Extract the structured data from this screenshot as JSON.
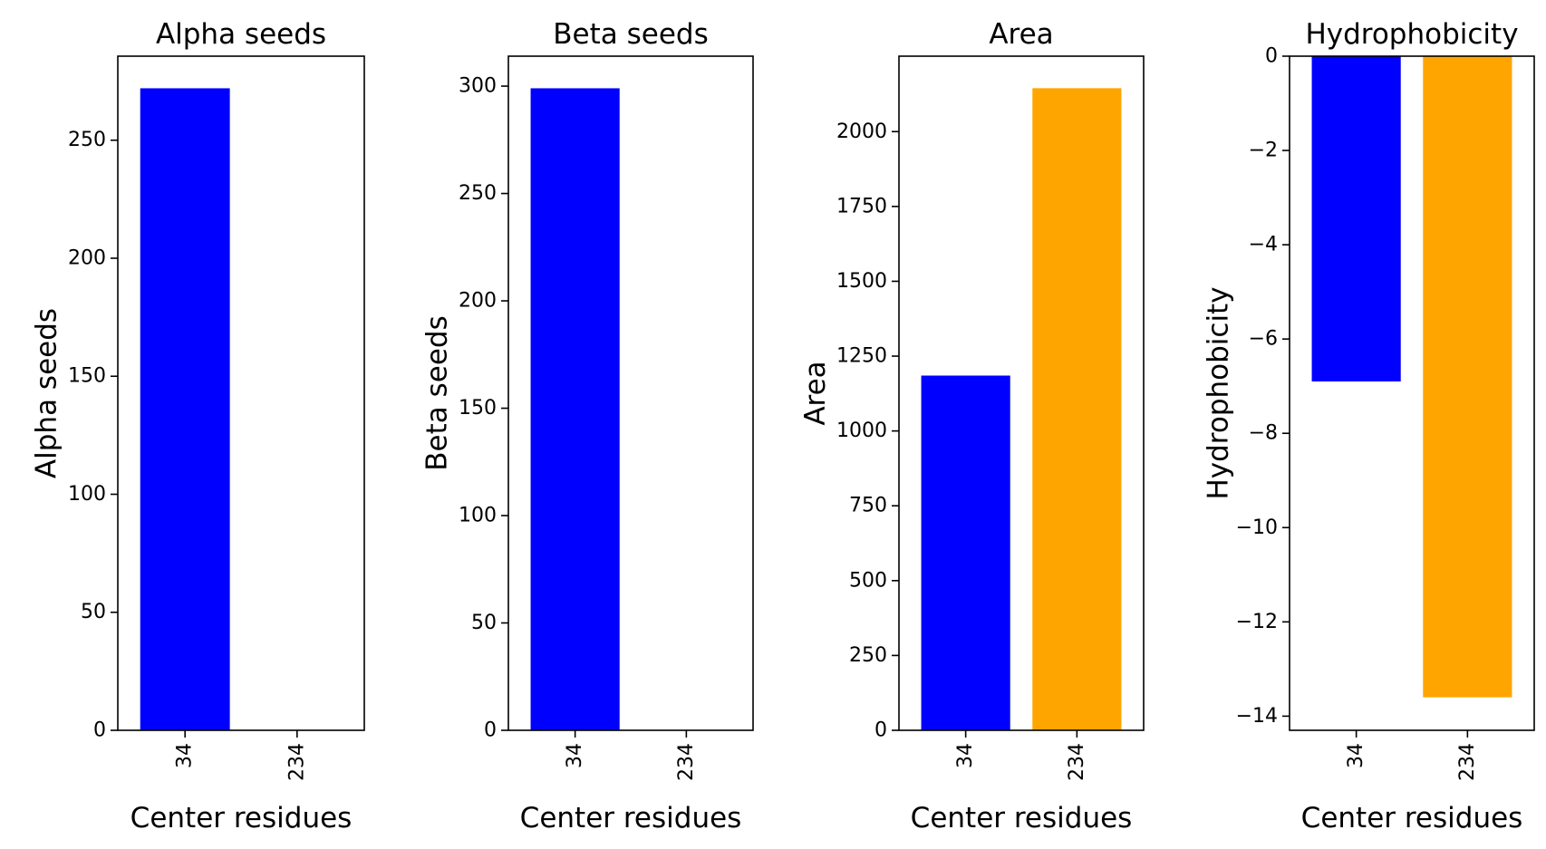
{
  "chart_data": [
    {
      "type": "bar",
      "title": "Alpha seeds",
      "xlabel": "Center residues",
      "ylabel": "Alpha seeds",
      "categories": [
        "34",
        "234"
      ],
      "values": [
        272,
        0
      ],
      "colors": [
        "#0000ff",
        "#ffa500"
      ],
      "ylim": [
        0,
        285.6
      ],
      "yticks": [
        0,
        50,
        100,
        150,
        200,
        250
      ],
      "ytick_labels": [
        "0",
        "50",
        "100",
        "150",
        "200",
        "250"
      ],
      "grid": false
    },
    {
      "type": "bar",
      "title": "Beta seeds",
      "xlabel": "Center residues",
      "ylabel": "Beta seeds",
      "categories": [
        "34",
        "234"
      ],
      "values": [
        299,
        0
      ],
      "colors": [
        "#0000ff",
        "#ffa500"
      ],
      "ylim": [
        0,
        313.95
      ],
      "yticks": [
        0,
        50,
        100,
        150,
        200,
        250,
        300
      ],
      "ytick_labels": [
        "0",
        "50",
        "100",
        "150",
        "200",
        "250",
        "300"
      ],
      "grid": false
    },
    {
      "type": "bar",
      "title": "Area",
      "xlabel": "Center residues",
      "ylabel": "Area",
      "categories": [
        "34",
        "234"
      ],
      "values": [
        1185,
        2145
      ],
      "colors": [
        "#0000ff",
        "#ffa500"
      ],
      "ylim": [
        0,
        2252
      ],
      "yticks": [
        0,
        250,
        500,
        750,
        1000,
        1250,
        1500,
        1750,
        2000
      ],
      "ytick_labels": [
        "0",
        "250",
        "500",
        "750",
        "1000",
        "1250",
        "1500",
        "1750",
        "2000"
      ],
      "grid": false
    },
    {
      "type": "bar",
      "title": "Hydrophobicity",
      "xlabel": "Center residues",
      "ylabel": "Hydrophobicity",
      "categories": [
        "34",
        "234"
      ],
      "values": [
        -6.9,
        -13.6
      ],
      "colors": [
        "#0000ff",
        "#ffa500"
      ],
      "ylim": [
        -14.3,
        0
      ],
      "yticks": [
        0,
        -2,
        -4,
        -6,
        -8,
        -10,
        -12,
        -14
      ],
      "ytick_labels": [
        "0",
        "−2",
        "−4",
        "−6",
        "−8",
        "−10",
        "−12",
        "−14"
      ],
      "grid": false
    }
  ]
}
